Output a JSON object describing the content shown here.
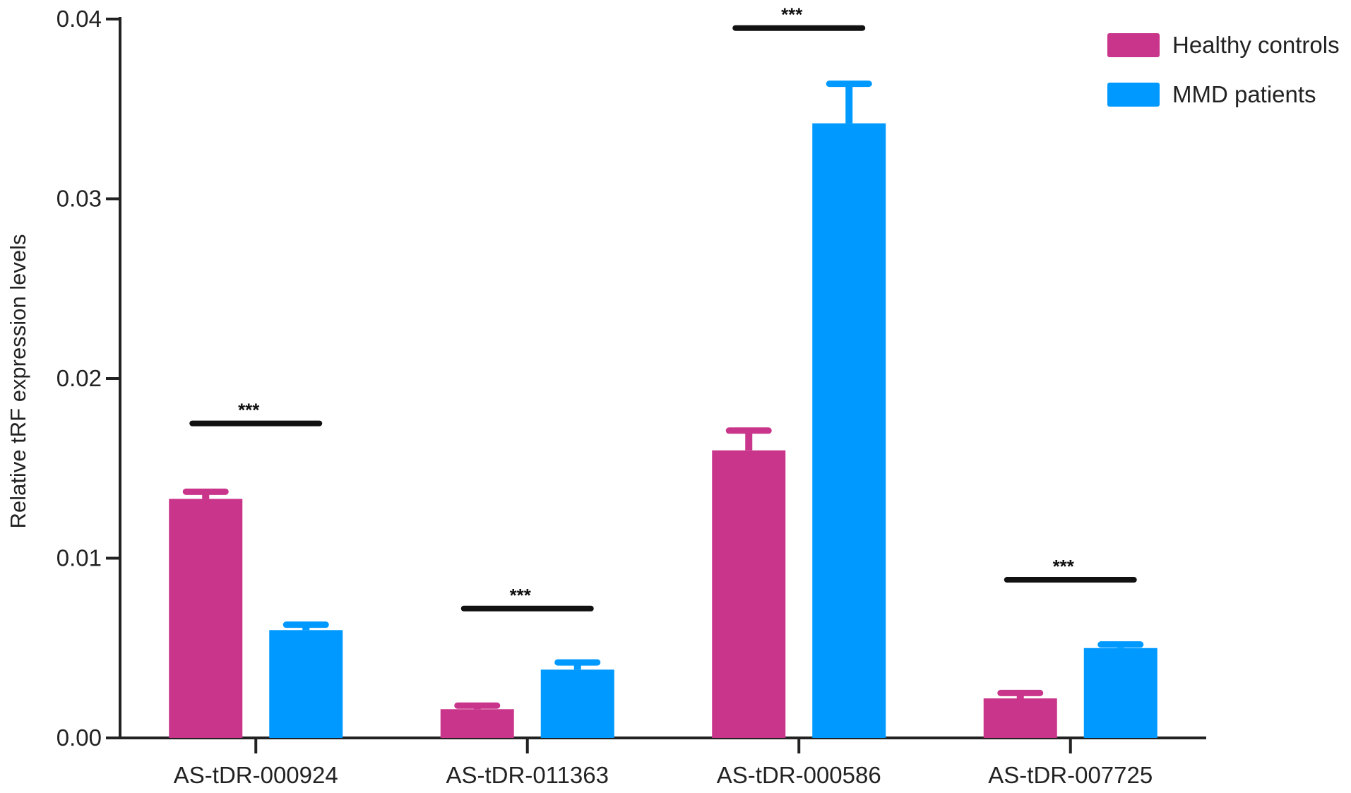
{
  "chart_data": {
    "type": "bar",
    "ylabel": "Relative tRF expression levels",
    "xlabel": "",
    "ylim": [
      0,
      0.04
    ],
    "yticks": [
      "0.00",
      "0.01",
      "0.02",
      "0.03",
      "0.04"
    ],
    "categories": [
      "AS-tDR-000924",
      "AS-tDR-011363",
      "AS-tDR-000586",
      "AS-tDR-007725"
    ],
    "series": [
      {
        "name": "Healthy controls",
        "color": "#c9358b",
        "values": [
          0.0133,
          0.0016,
          0.016,
          0.0022
        ],
        "errors": [
          0.0004,
          0.0002,
          0.0011,
          0.0003
        ]
      },
      {
        "name": "MMD patients",
        "color": "#0099ff",
        "values": [
          0.006,
          0.0038,
          0.0342,
          0.005
        ],
        "errors": [
          0.0003,
          0.0004,
          0.0022,
          0.0002
        ]
      }
    ],
    "significance": [
      {
        "category": "AS-tDR-000924",
        "level": 0.0175,
        "label": "***"
      },
      {
        "category": "AS-tDR-011363",
        "level": 0.0072,
        "label": "***"
      },
      {
        "category": "AS-tDR-000586",
        "level": 0.0395,
        "label": "***"
      },
      {
        "category": "AS-tDR-007725",
        "level": 0.0088,
        "label": "***"
      }
    ],
    "legend_position": "top-right",
    "grid": false
  }
}
